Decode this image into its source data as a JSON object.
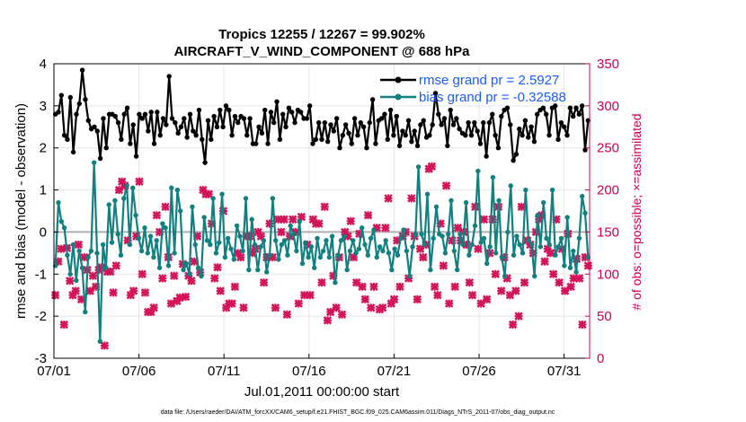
{
  "chart_data": {
    "type": "line",
    "title": "Tropics 12255 / 12267 = 99.902%",
    "subtitle": "AIRCRAFT_V_WIND_COMPONENT @ 688 hPa",
    "xlabel": "Jul.01,2011 00:00:00 start",
    "ylabel": "rmse and bias (model - observation)",
    "ylabel_right": "# of obs: o=possible; ×=assimilated",
    "xlim": [
      0,
      31.5
    ],
    "ylim": [
      -3,
      4
    ],
    "ylim_right": [
      0,
      350
    ],
    "x_ticks": [
      0,
      5,
      10,
      15,
      20,
      25,
      30
    ],
    "x_tick_labels": [
      "07/01",
      "07/06",
      "07/11",
      "07/16",
      "07/21",
      "07/26",
      "07/31"
    ],
    "y_ticks": [
      -3,
      -2,
      -1,
      0,
      1,
      2,
      3,
      4
    ],
    "y_ticks_right": [
      0,
      50,
      100,
      150,
      200,
      250,
      300,
      350
    ],
    "grid": true,
    "legend_position": "top-right",
    "series": [
      {
        "name": "rmse grand pr = 2.5927",
        "color": "#000000",
        "axis": "left",
        "values": [
          2.8,
          2.85,
          3.25,
          2.3,
          2.2,
          3.2,
          1.9,
          2.8,
          3.05,
          3.85,
          3.15,
          2.65,
          2.45,
          2.5,
          2.4,
          1.75,
          2.7,
          2.0,
          2.8,
          2.8,
          2.75,
          2.6,
          2.2,
          2.8,
          2.95,
          2.1,
          2.55,
          1.8,
          2.8,
          2.7,
          2.8,
          2.4,
          2.85,
          2.1,
          2.85,
          2.3,
          2.7,
          2.55,
          3.7,
          2.7,
          2.6,
          2.35,
          2.5,
          2.7,
          2.25,
          2.8,
          2.4,
          2.3,
          2.9,
          2.2,
          1.65,
          2.65,
          2.2,
          2.75,
          2.5,
          2.9,
          2.5,
          3.0,
          2.9,
          2.3,
          2.75,
          2.6,
          2.75,
          2.7,
          2.3,
          2.7,
          2.1,
          2.1,
          2.5,
          2.35,
          2.9,
          2.1,
          2.85,
          2.6,
          3.1,
          2.2,
          2.8,
          2.5,
          2.95,
          2.85,
          2.6,
          2.9,
          2.85,
          2.7,
          2.7,
          3.0,
          2.1,
          2.2,
          2.6,
          2.2,
          2.6,
          2.15,
          2.55,
          2.4,
          2.7,
          2.0,
          2.3,
          2.55,
          2.35,
          2.1,
          2.7,
          2.3,
          2.6,
          2.5,
          2.0,
          2.6,
          3.15,
          2.1,
          2.65,
          2.7,
          2.8,
          2.2,
          2.9,
          2.3,
          2.75,
          2.05,
          2.4,
          2.3,
          2.65,
          2.15,
          2.4,
          2.05,
          2.55,
          2.65,
          2.25,
          2.3,
          2.55,
          3.3,
          2.8,
          2.55,
          2.7,
          2.05,
          2.9,
          2.55,
          2.7,
          2.45,
          2.35,
          2.3,
          2.6,
          2.3,
          2.6,
          2.4,
          2.1,
          2.6,
          1.8,
          2.6,
          2.8,
          2.3,
          2.0,
          2.75,
          2.9,
          2.95,
          2.55,
          1.7,
          1.85,
          2.45,
          2.3,
          2.65,
          2.25,
          2.5,
          2.15,
          2.8,
          2.9,
          2.95,
          2.8,
          2.3,
          2.95,
          3.0,
          2.2,
          2.6,
          2.5,
          2.3,
          2.95,
          2.75,
          2.95,
          2.8,
          3.0,
          1.95,
          2.65
        ],
        "marker": "filled-circle"
      },
      {
        "name": "bias grand pr = -0.32588",
        "color": "#128080",
        "axis": "left",
        "values": [
          -0.8,
          0.7,
          0.25,
          0.1,
          -0.55,
          -1.0,
          -0.3,
          -1.15,
          -0.45,
          -0.85,
          -1.9,
          -0.6,
          -0.45,
          1.65,
          -0.5,
          -2.6,
          -0.3,
          -0.85,
          0.65,
          -0.25,
          0.75,
          -0.05,
          -0.55,
          0.8,
          1.1,
          -0.3,
          1.05,
          0.4,
          -0.15,
          -0.45,
          0.1,
          -0.5,
          -0.1,
          -0.6,
          -0.2,
          -0.85,
          0.2,
          0.1,
          -0.8,
          1.05,
          -0.5,
          1.0,
          0.5,
          -0.9,
          -0.75,
          -1.0,
          0.6,
          -0.3,
          -0.85,
          -1.05,
          0.35,
          -0.2,
          -0.3,
          0.8,
          -0.5,
          -0.25,
          0.9,
          -0.6,
          -0.15,
          -0.4,
          -0.65,
          0.15,
          -0.1,
          -0.45,
          0.8,
          -0.9,
          0.3,
          -0.3,
          -0.9,
          -0.35,
          -0.2,
          -0.95,
          -0.55,
          0.8,
          -0.2,
          -0.65,
          -0.3,
          -0.2,
          -0.55,
          0.15,
          -0.05,
          -0.45,
          0.25,
          -0.75,
          -0.25,
          -0.6,
          -0.35,
          -0.85,
          -0.15,
          -0.6,
          -0.45,
          -0.2,
          -0.6,
          -0.1,
          -1.2,
          -0.55,
          -0.2,
          -0.1,
          -0.9,
          -0.45,
          -0.2,
          -0.5,
          -0.4,
          0.1,
          -0.3,
          -0.55,
          -0.15,
          0.05,
          -0.6,
          -0.35,
          -0.45,
          -0.2,
          -0.5,
          -0.9,
          -0.4,
          -0.55,
          -0.15,
          0.05,
          -0.45,
          -1.05,
          -0.35,
          -0.05,
          1.55,
          -0.05,
          -0.3,
          0.9,
          -0.9,
          -0.15,
          0.6,
          -0.05,
          -0.1,
          -0.5,
          -0.05,
          0.75,
          -0.45,
          -0.9,
          -0.05,
          -0.3,
          0.7,
          -0.55,
          -0.3,
          0.15,
          1.45,
          -0.25,
          -0.15,
          -0.75,
          -0.35,
          1.3,
          -0.5,
          0.75,
          -0.6,
          -1.05,
          0.0,
          1.1,
          -0.55,
          -0.1,
          -0.3,
          -0.5,
          1.0,
          -0.2,
          -0.3,
          -1.05,
          0.4,
          -0.35,
          0.7,
          -0.15,
          -0.3,
          1.0,
          -0.55,
          -0.35,
          -0.15,
          -0.8,
          0.35,
          -0.85,
          -0.45,
          -0.95,
          -0.15,
          0.85,
          0.45,
          -0.6
        ],
        "marker": "filled-circle"
      },
      {
        "name": "# of obs assimilated",
        "color": "#d4145a",
        "axis": "right",
        "marker": "cross",
        "values": [
          75,
          115,
          130,
          40,
          131,
          92,
          75,
          80,
          135,
          70,
          120,
          105,
          80,
          98,
          85,
          105,
          108,
          15,
          103,
          103,
          78,
          110,
          200,
          210,
          205,
          140,
          75,
          80,
          145,
          210,
          100,
          78,
          55,
          55,
          60,
          170,
          150,
          95,
          180,
          120,
          65,
          98,
          68,
          72,
          112,
          73,
          98,
          92,
          115,
          145,
          102,
          200,
          195,
          195,
          160,
          95,
          108,
          80,
          175,
          60,
          65,
          65,
          85,
          125,
          120,
          60,
          145,
          145,
          125,
          130,
          150,
          145,
          90,
          120,
          160,
          120,
          60,
          165,
          150,
          165,
          52,
          145,
          165,
          150,
          65,
          168,
          75,
          135,
          75,
          165,
          160,
          160,
          90,
          180,
          45,
          55,
          98,
          60,
          120,
          52,
          150,
          145,
          163,
          120,
          90,
          148,
          85,
          70,
          170,
          60,
          85,
          155,
          58,
          60,
          155,
          190,
          65,
          70,
          140,
          85,
          145,
          150,
          95,
          190,
          145,
          70,
          130,
          120,
          135,
          225,
          228,
          85,
          75,
          160,
          110,
          205,
          65,
          140,
          85,
          155,
          140,
          150,
          135,
          90,
          75,
          180,
          130,
          65,
          165,
          70,
          125,
          165,
          100,
          180,
          80,
          120,
          95,
          75,
          40,
          80,
          50,
          180,
          90,
          140,
          135,
          125,
          150,
          165,
          170,
          115,
          130,
          125,
          100,
          165,
          90,
          130,
          80,
          148,
          85,
          95,
          118,
          95,
          40,
          120,
          110
        ]
      }
    ],
    "footer": "data file: /Users/raeder/DAI/ATM_forcXX/CAM6_setup/f.e21.FHIST_BGC.f09_025.CAM6assim.011/Diags_NTrS_2011-07/obs_diag_output.nc"
  }
}
